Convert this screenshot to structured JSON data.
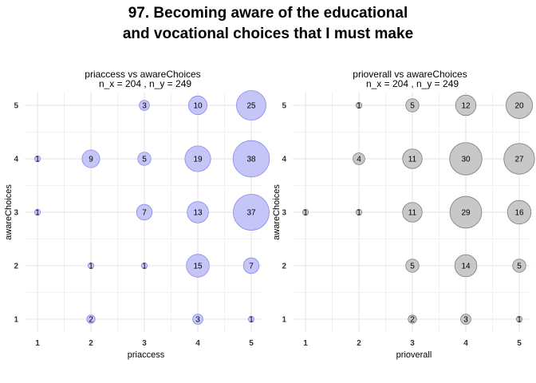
{
  "title_lines": [
    "97. Becoming aware of the educational",
    "and vocational choices that I must make"
  ],
  "chart_data": [
    {
      "type": "scatter",
      "title_line1": "priaccess vs awareChoices",
      "title_line2": "n_x = 204 , n_y = 249",
      "xlabel": "priaccess",
      "ylabel": "awareChoices",
      "xlim": [
        1,
        5
      ],
      "ylim": [
        1,
        5
      ],
      "x_ticks": [
        "1",
        "2",
        "3",
        "4",
        "5"
      ],
      "y_ticks": [
        "1",
        "2",
        "3",
        "4",
        "5"
      ],
      "fill_color": "#c5c5f8",
      "stroke_color": "#8a8ae8",
      "points": [
        {
          "x": 3,
          "y": 5,
          "n": 3
        },
        {
          "x": 4,
          "y": 5,
          "n": 10
        },
        {
          "x": 5,
          "y": 5,
          "n": 25
        },
        {
          "x": 1,
          "y": 4,
          "n": 1
        },
        {
          "x": 2,
          "y": 4,
          "n": 9
        },
        {
          "x": 3,
          "y": 4,
          "n": 5
        },
        {
          "x": 4,
          "y": 4,
          "n": 19
        },
        {
          "x": 5,
          "y": 4,
          "n": 38
        },
        {
          "x": 1,
          "y": 3,
          "n": 1
        },
        {
          "x": 3,
          "y": 3,
          "n": 7
        },
        {
          "x": 4,
          "y": 3,
          "n": 13
        },
        {
          "x": 5,
          "y": 3,
          "n": 37
        },
        {
          "x": 2,
          "y": 2,
          "n": 1
        },
        {
          "x": 3,
          "y": 2,
          "n": 1
        },
        {
          "x": 4,
          "y": 2,
          "n": 15
        },
        {
          "x": 5,
          "y": 2,
          "n": 7
        },
        {
          "x": 2,
          "y": 1,
          "n": 2
        },
        {
          "x": 4,
          "y": 1,
          "n": 3
        },
        {
          "x": 5,
          "y": 1,
          "n": 1
        }
      ]
    },
    {
      "type": "scatter",
      "title_line1": "prioverall vs awareChoices",
      "title_line2": "n_x = 204 , n_y = 249",
      "xlabel": "prioverall",
      "ylabel": "awareChoices",
      "xlim": [
        1,
        5
      ],
      "ylim": [
        1,
        5
      ],
      "x_ticks": [
        "1",
        "2",
        "3",
        "4",
        "5"
      ],
      "y_ticks": [
        "1",
        "2",
        "3",
        "4",
        "5"
      ],
      "fill_color": "#c8c8c8",
      "stroke_color": "#7d7d7d",
      "points": [
        {
          "x": 2,
          "y": 5,
          "n": 1
        },
        {
          "x": 3,
          "y": 5,
          "n": 5
        },
        {
          "x": 4,
          "y": 5,
          "n": 12
        },
        {
          "x": 5,
          "y": 5,
          "n": 20
        },
        {
          "x": 2,
          "y": 4,
          "n": 4
        },
        {
          "x": 3,
          "y": 4,
          "n": 11
        },
        {
          "x": 4,
          "y": 4,
          "n": 30
        },
        {
          "x": 5,
          "y": 4,
          "n": 27
        },
        {
          "x": 1,
          "y": 3,
          "n": 1
        },
        {
          "x": 2,
          "y": 3,
          "n": 1
        },
        {
          "x": 3,
          "y": 3,
          "n": 11
        },
        {
          "x": 4,
          "y": 3,
          "n": 29
        },
        {
          "x": 5,
          "y": 3,
          "n": 16
        },
        {
          "x": 3,
          "y": 2,
          "n": 5
        },
        {
          "x": 4,
          "y": 2,
          "n": 14
        },
        {
          "x": 5,
          "y": 2,
          "n": 5
        },
        {
          "x": 3,
          "y": 1,
          "n": 2
        },
        {
          "x": 4,
          "y": 1,
          "n": 3
        },
        {
          "x": 5,
          "y": 1,
          "n": 1
        }
      ]
    }
  ]
}
